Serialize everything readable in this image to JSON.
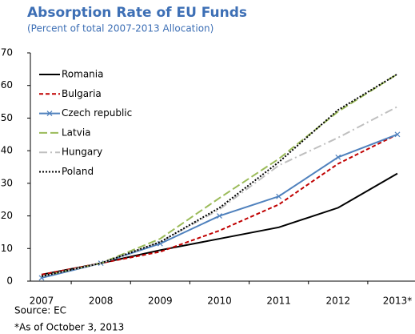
{
  "chart_data": {
    "type": "line",
    "title": "Absorption Rate of EU Funds",
    "subtitle": "(Percent of total 2007-2013 Allocation)",
    "categories": [
      "2007",
      "2008",
      "2009",
      "2010",
      "2011",
      "2012",
      "2013*"
    ],
    "series": [
      {
        "name": "Romania",
        "color": "#000000",
        "dash": "solid",
        "values": [
          2,
          5.5,
          9.5,
          13,
          16.5,
          22.5,
          33
        ]
      },
      {
        "name": "Bulgaria",
        "color": "#c00000",
        "dash": "dashed",
        "values": [
          2,
          5.5,
          9,
          15.5,
          23.5,
          36,
          45
        ]
      },
      {
        "name": "Czech republic",
        "color": "#4f81bd",
        "dash": "solid",
        "marker": "x",
        "values": [
          1,
          5.5,
          11.5,
          20,
          26,
          38,
          45
        ]
      },
      {
        "name": "Latvia",
        "color": "#9bbb59",
        "dash": "longdash",
        "values": [
          1.5,
          5.5,
          13,
          25.5,
          37.5,
          52,
          63.5
        ]
      },
      {
        "name": "Hungary",
        "color": "#bfbfbf",
        "dash": "dashdot",
        "values": [
          1.5,
          5.5,
          12,
          22,
          35.5,
          44,
          53.5
        ]
      },
      {
        "name": "Poland",
        "color": "#000000",
        "dash": "dotted",
        "values": [
          1.5,
          5.5,
          12,
          22.5,
          36.5,
          52.5,
          63.5
        ]
      }
    ],
    "ylim": [
      0,
      70
    ],
    "yticks": [
      0,
      10,
      20,
      30,
      40,
      50,
      60,
      70
    ],
    "legend": "upper-left",
    "source": "Source: EC",
    "footnote": "*As of October 3, 2013"
  }
}
